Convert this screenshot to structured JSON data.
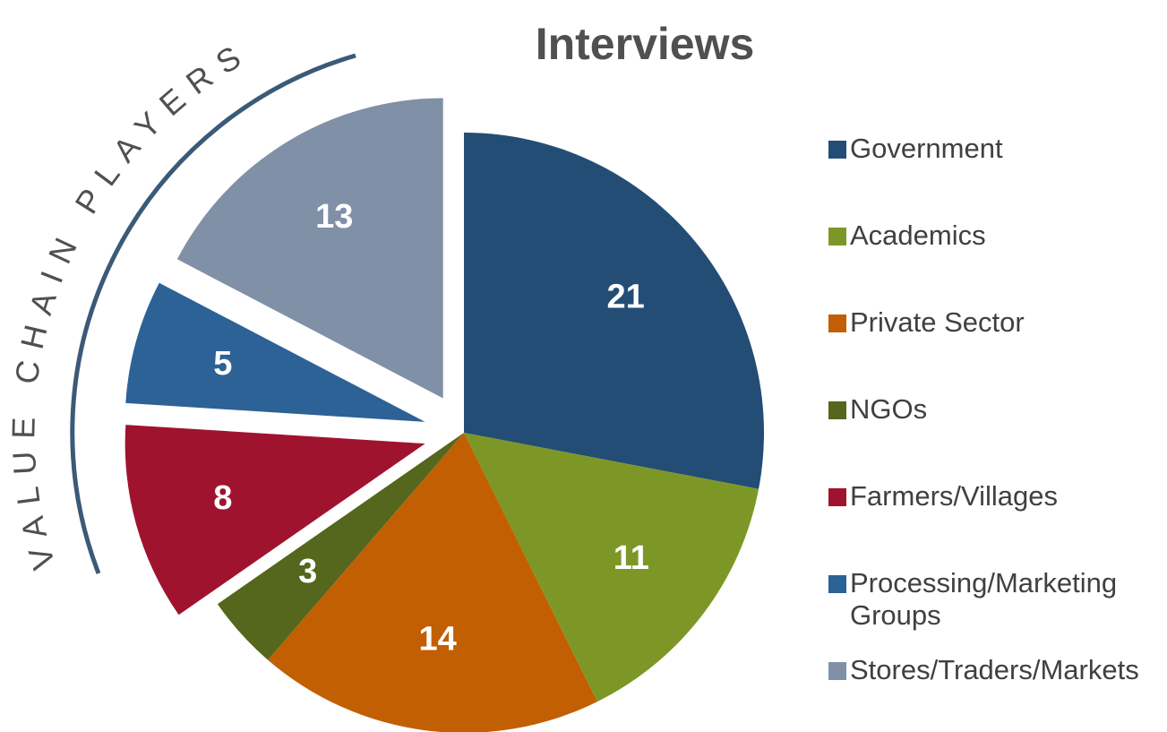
{
  "chart_data": {
    "type": "pie",
    "title": "Interviews",
    "annotation": "VALUE CHAIN PLAYERS",
    "categories": [
      "Government",
      "Academics",
      "Private Sector",
      "NGOs",
      "Farmers/Villages",
      "Processing/Marketing Groups",
      "Stores/Traders/Markets"
    ],
    "values": [
      21,
      11,
      14,
      3,
      8,
      5,
      13
    ],
    "colors": [
      "#234d75",
      "#7d9726",
      "#c25f02",
      "#55661d",
      "#a0132f",
      "#2c6296",
      "#8090a6"
    ],
    "exploded": [
      false,
      false,
      false,
      false,
      true,
      true,
      true
    ],
    "legend": "right"
  }
}
